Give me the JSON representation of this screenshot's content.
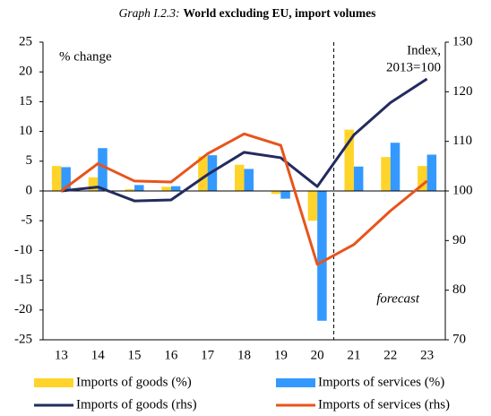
{
  "chart_data": {
    "type": "combo",
    "title_label": "Graph I.2.3:",
    "title": "World excluding EU, import volumes",
    "y_label": "% change",
    "y2_label": [
      "Index,",
      "2013=100"
    ],
    "annotation": "forecast",
    "categories": [
      "13",
      "14",
      "15",
      "16",
      "17",
      "18",
      "19",
      "20",
      "21",
      "22",
      "23"
    ],
    "series": [
      {
        "name": "Imports of goods (%)",
        "type": "bar",
        "color": "#ffd42a",
        "values": [
          4.2,
          2.3,
          0.3,
          0.7,
          5.8,
          4.4,
          -0.5,
          -5.0,
          10.3,
          5.7,
          4.2
        ]
      },
      {
        "name": "Imports of services (%)",
        "type": "bar",
        "color": "#3399ff",
        "values": [
          4.0,
          7.2,
          1.0,
          0.8,
          6.0,
          3.7,
          -1.3,
          -21.8,
          4.1,
          8.1,
          6.1
        ]
      },
      {
        "name": "Imports of goods (rhs)",
        "type": "line",
        "axis": "y2",
        "color": "#232b5e",
        "values": [
          100,
          100.8,
          98,
          98.2,
          103.3,
          107.8,
          106.7,
          100.9,
          111.3,
          117.8,
          122.6
        ]
      },
      {
        "name": "Imports of services (rhs)",
        "type": "line",
        "axis": "y2",
        "color": "#e8541c",
        "values": [
          100,
          105.5,
          102,
          101.8,
          107.5,
          111.5,
          109.2,
          85.2,
          89.2,
          96,
          102
        ]
      }
    ],
    "ylim": [
      -25,
      25
    ],
    "yticks": [
      -25,
      -20,
      -15,
      -10,
      -5,
      0,
      5,
      10,
      15,
      20,
      25
    ],
    "y2lim": [
      70,
      130
    ],
    "y2ticks": [
      70,
      80,
      90,
      100,
      110,
      120,
      130
    ]
  }
}
